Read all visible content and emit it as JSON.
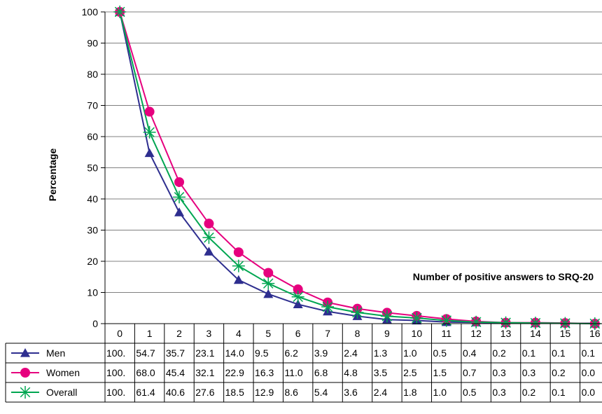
{
  "chart_data": {
    "type": "line",
    "title": "",
    "xlabel": "Number of positive answers to SRQ-20",
    "ylabel": "Percentage",
    "ylim": [
      0,
      100
    ],
    "yticks": [
      0,
      10,
      20,
      30,
      40,
      50,
      60,
      70,
      80,
      90,
      100
    ],
    "grid": "horizontal",
    "legend": "data-table-left",
    "categories": [
      "0",
      "1",
      "2",
      "3",
      "4",
      "5",
      "6",
      "7",
      "8",
      "9",
      "10",
      "11",
      "12",
      "13",
      "14",
      "15",
      "16"
    ],
    "series": [
      {
        "name": "Men",
        "color": "#2e2e8f",
        "marker": "triangle",
        "values": [
          100,
          54.7,
          35.7,
          23.1,
          14.0,
          9.5,
          6.2,
          3.9,
          2.4,
          1.3,
          1.0,
          0.5,
          0.4,
          0.2,
          0.1,
          0.1,
          0.1
        ],
        "labels": [
          "100.",
          "54.7",
          "35.7",
          "23.1",
          "14.0",
          "9.5",
          "6.2",
          "3.9",
          "2.4",
          "1.3",
          "1.0",
          "0.5",
          "0.4",
          "0.2",
          "0.1",
          "0.1",
          "0.1"
        ]
      },
      {
        "name": "Women",
        "color": "#e6007e",
        "marker": "circle",
        "values": [
          100,
          68.0,
          45.4,
          32.1,
          22.9,
          16.3,
          11.0,
          6.8,
          4.8,
          3.5,
          2.5,
          1.5,
          0.7,
          0.3,
          0.3,
          0.2,
          0.0
        ],
        "labels": [
          "100.",
          "68.0",
          "45.4",
          "32.1",
          "22.9",
          "16.3",
          "11.0",
          "6.8",
          "4.8",
          "3.5",
          "2.5",
          "1.5",
          "0.7",
          "0.3",
          "0.3",
          "0.2",
          "0.0"
        ]
      },
      {
        "name": "Overall",
        "color": "#00a651",
        "marker": "star",
        "values": [
          100,
          61.4,
          40.6,
          27.6,
          18.5,
          12.9,
          8.6,
          5.4,
          3.6,
          2.4,
          1.8,
          1.0,
          0.5,
          0.3,
          0.2,
          0.1,
          0.0
        ],
        "labels": [
          "100.",
          "61.4",
          "40.6",
          "27.6",
          "18.5",
          "12.9",
          "8.6",
          "5.4",
          "3.6",
          "2.4",
          "1.8",
          "1.0",
          "0.5",
          "0.3",
          "0.2",
          "0.1",
          "0.0"
        ]
      }
    ]
  }
}
